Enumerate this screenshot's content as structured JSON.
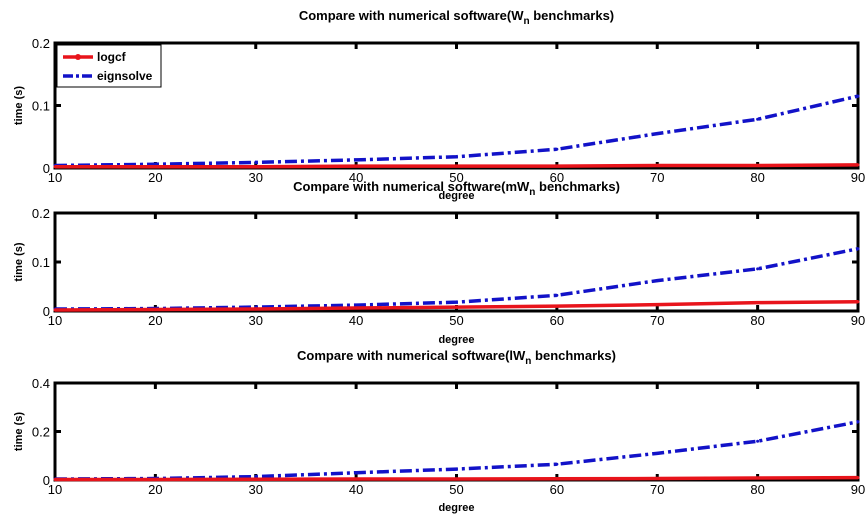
{
  "colors": {
    "logcf": "#e8141b",
    "eignsolve": "#1212c8",
    "axis": "#000000",
    "background": "#ffffff"
  },
  "chart_data": [
    {
      "type": "line",
      "title": "Compare with numerical software(W",
      "title_subscript": "n",
      "title_suffix": " benchmarks)",
      "xlabel": "degree",
      "ylabel": "time (s)",
      "xlim": [
        10,
        90
      ],
      "ylim": [
        0,
        0.2
      ],
      "xticks": [
        10,
        20,
        30,
        40,
        50,
        60,
        70,
        80,
        90
      ],
      "xtick_labels": [
        "10",
        "20",
        "30",
        "40",
        "50",
        "60",
        "70",
        "80",
        "90"
      ],
      "yticks": [
        0,
        0.1,
        0.2
      ],
      "ytick_labels": [
        "0",
        "0.1",
        "0.2"
      ],
      "grid": false,
      "legend": {
        "position": "top-left",
        "entries": [
          "logcf",
          "eignsolve"
        ]
      },
      "x": [
        10,
        20,
        30,
        40,
        50,
        60,
        70,
        80,
        90
      ],
      "series": [
        {
          "name": "logcf",
          "style": "solid",
          "color": "#e8141b",
          "values": [
            0.002,
            0.002,
            0.002,
            0.003,
            0.003,
            0.003,
            0.004,
            0.004,
            0.005
          ]
        },
        {
          "name": "eignsolve",
          "style": "dashdot",
          "color": "#1212c8",
          "values": [
            0.004,
            0.006,
            0.009,
            0.013,
            0.018,
            0.03,
            0.055,
            0.078,
            0.115
          ]
        }
      ]
    },
    {
      "type": "line",
      "title": "Compare with numerical software(mW",
      "title_subscript": "n",
      "title_suffix": " benchmarks)",
      "xlabel": "degree",
      "ylabel": "time (s)",
      "xlim": [
        10,
        90
      ],
      "ylim": [
        0,
        0.2
      ],
      "xticks": [
        10,
        20,
        30,
        40,
        50,
        60,
        70,
        80,
        90
      ],
      "xtick_labels": [
        "10",
        "20",
        "30",
        "40",
        "50",
        "60",
        "70",
        "80",
        "90"
      ],
      "yticks": [
        0,
        0.1,
        0.2
      ],
      "ytick_labels": [
        "0",
        "0.1",
        "0.2"
      ],
      "grid": false,
      "legend": null,
      "x": [
        10,
        20,
        30,
        40,
        50,
        60,
        70,
        80,
        90
      ],
      "series": [
        {
          "name": "logcf",
          "style": "solid",
          "color": "#e8141b",
          "values": [
            0.002,
            0.003,
            0.004,
            0.006,
            0.008,
            0.01,
            0.013,
            0.017,
            0.019
          ]
        },
        {
          "name": "eignsolve",
          "style": "dashdot",
          "color": "#1212c8",
          "values": [
            0.004,
            0.005,
            0.008,
            0.012,
            0.018,
            0.032,
            0.062,
            0.086,
            0.127
          ]
        }
      ]
    },
    {
      "type": "line",
      "title": "Compare with numerical software(lW",
      "title_subscript": "n",
      "title_suffix": " benchmarks)",
      "xlabel": "degree",
      "ylabel": "time (s)",
      "xlim": [
        10,
        90
      ],
      "ylim": [
        0,
        0.4
      ],
      "xticks": [
        10,
        20,
        30,
        40,
        50,
        60,
        70,
        80,
        90
      ],
      "xtick_labels": [
        "10",
        "20",
        "30",
        "40",
        "50",
        "60",
        "70",
        "80",
        "90"
      ],
      "yticks": [
        0,
        0.2,
        0.4
      ],
      "ytick_labels": [
        "0",
        "0.2",
        "0.4"
      ],
      "grid": false,
      "legend": null,
      "x": [
        10,
        20,
        30,
        40,
        50,
        60,
        70,
        80,
        90
      ],
      "series": [
        {
          "name": "logcf",
          "style": "solid",
          "color": "#e8141b",
          "values": [
            0.002,
            0.002,
            0.003,
            0.004,
            0.004,
            0.005,
            0.006,
            0.008,
            0.01
          ]
        },
        {
          "name": "eignsolve",
          "style": "dashdot",
          "color": "#1212c8",
          "values": [
            0.004,
            0.006,
            0.014,
            0.03,
            0.045,
            0.065,
            0.11,
            0.16,
            0.24
          ]
        }
      ]
    }
  ]
}
